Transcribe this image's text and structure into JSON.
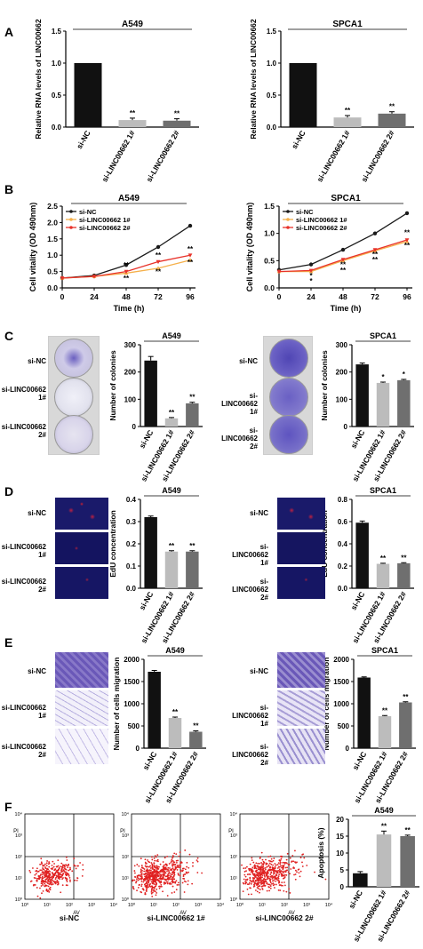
{
  "panel_letters": [
    "A",
    "B",
    "C",
    "D",
    "E",
    "F"
  ],
  "row_labels": [
    "si-NC",
    "si-LINC00662 1#",
    "si-LINC00662 2#"
  ],
  "flow_axis": {
    "y_label": "PI",
    "x_label": "AV",
    "tick_labels": [
      "10⁰",
      "10¹",
      "10²",
      "10³",
      "10⁴"
    ]
  },
  "colors": {
    "black_bar": "#111111",
    "light_bar": "#bcbcbc",
    "mid_bar": "#6f6f6f",
    "line_nc": "#1a1a1a",
    "line_1": "#f5b04a",
    "line_2": "#e8322a",
    "crystal_violet": "#5a50b8",
    "edu_red": "#cc2233",
    "edu_blue": "#2233aa",
    "flow_red": "#e02020"
  },
  "chart_data": [
    {
      "id": "A1",
      "type": "bar",
      "title": "A549",
      "ylabel": "Relative RNA levels of LINC00662",
      "categories": [
        "si-NC",
        "si-LINC00662 1#",
        "si-LINC00662 2#"
      ],
      "values": [
        1.0,
        0.11,
        0.1
      ],
      "errors": [
        0,
        0.03,
        0.03
      ],
      "sig": [
        "",
        "**",
        "**"
      ],
      "ylim": [
        0,
        1.5
      ],
      "yticks": [
        "0.0",
        "0.5",
        "1.0",
        "1.5"
      ]
    },
    {
      "id": "A2",
      "type": "bar",
      "title": "SPCA1",
      "ylabel": "Relative RNA levels of LINC00662",
      "categories": [
        "si-NC",
        "si-LINC00662 1#",
        "si-LINC00662 2#"
      ],
      "values": [
        1.0,
        0.15,
        0.21
      ],
      "errors": [
        0,
        0.03,
        0.03
      ],
      "sig": [
        "",
        "**",
        "**"
      ],
      "ylim": [
        0,
        1.5
      ],
      "yticks": [
        "0.0",
        "0.5",
        "1.0",
        "1.5"
      ]
    },
    {
      "id": "B1",
      "type": "line",
      "title": "A549",
      "xlabel": "Time (h)",
      "ylabel": "Cell vitality (OD 490nm)",
      "x": [
        0,
        24,
        48,
        72,
        96
      ],
      "xticks": [
        "0",
        "24",
        "48",
        "72",
        "96"
      ],
      "ylim": [
        0,
        2.5
      ],
      "yticks": [
        "0.0",
        "0.5",
        "1.0",
        "1.5",
        "2.0",
        "2.5"
      ],
      "xlim": [
        0,
        100
      ],
      "legend": "top-left",
      "series": [
        {
          "name": "si-NC",
          "values": [
            0.3,
            0.38,
            0.7,
            1.25,
            1.9
          ]
        },
        {
          "name": "si-LINC00662 1#",
          "values": [
            0.3,
            0.35,
            0.45,
            0.6,
            0.85
          ]
        },
        {
          "name": "si-LINC00662 2#",
          "values": [
            0.3,
            0.35,
            0.5,
            0.8,
            1.0
          ]
        }
      ],
      "sig_marks": [
        {
          "x": 48,
          "y": 0.62,
          "text": "**"
        },
        {
          "x": 48,
          "y": 0.22,
          "text": "**"
        },
        {
          "x": 72,
          "y": 0.92,
          "text": "**"
        },
        {
          "x": 72,
          "y": 0.42,
          "text": "**"
        },
        {
          "x": 96,
          "y": 1.12,
          "text": "**"
        },
        {
          "x": 96,
          "y": 0.7,
          "text": "**"
        }
      ]
    },
    {
      "id": "B2",
      "type": "line",
      "title": "SPCA1",
      "xlabel": "Time (h)",
      "ylabel": "Cell vitality (OD 490nm)",
      "x": [
        0,
        24,
        48,
        72,
        96
      ],
      "xticks": [
        "0",
        "24",
        "48",
        "72",
        "96"
      ],
      "ylim": [
        0,
        1.5
      ],
      "yticks": [
        "0.0",
        "0.5",
        "1.0",
        "1.5"
      ],
      "xlim": [
        0,
        100
      ],
      "legend": "top-left",
      "series": [
        {
          "name": "si-NC",
          "values": [
            0.33,
            0.43,
            0.7,
            1.0,
            1.37
          ]
        },
        {
          "name": "si-LINC00662 1#",
          "values": [
            0.3,
            0.3,
            0.5,
            0.68,
            0.85
          ]
        },
        {
          "name": "si-LINC00662 2#",
          "values": [
            0.3,
            0.32,
            0.52,
            0.7,
            0.88
          ]
        }
      ],
      "sig_marks": [
        {
          "x": 24,
          "y": 0.18,
          "text": "*"
        },
        {
          "x": 24,
          "y": 0.08,
          "text": "*"
        },
        {
          "x": 48,
          "y": 0.38,
          "text": "**"
        },
        {
          "x": 48,
          "y": 0.28,
          "text": "**"
        },
        {
          "x": 72,
          "y": 0.57,
          "text": "**"
        },
        {
          "x": 72,
          "y": 0.47,
          "text": "**"
        },
        {
          "x": 96,
          "y": 0.97,
          "text": "**"
        },
        {
          "x": 96,
          "y": 0.73,
          "text": "**"
        }
      ]
    },
    {
      "id": "C1",
      "type": "bar",
      "title": "A549",
      "ylabel": "Number of colonies",
      "categories": [
        "si-NC",
        "si-LINC00662 1#",
        "si-LINC00662 2#"
      ],
      "values": [
        242,
        30,
        85
      ],
      "errors": [
        15,
        3,
        4
      ],
      "sig": [
        "",
        "**",
        "**"
      ],
      "ylim": [
        0,
        300
      ],
      "yticks": [
        "0",
        "100",
        "200",
        "300"
      ]
    },
    {
      "id": "C2",
      "type": "bar",
      "title": "SPCA1",
      "ylabel": "Number of colonies",
      "categories": [
        "si-NC",
        "si-LINC00662 1#",
        "si-LINC00662 2#"
      ],
      "values": [
        228,
        160,
        170
      ],
      "errors": [
        5,
        3,
        3
      ],
      "sig": [
        "",
        "*",
        "*"
      ],
      "ylim": [
        0,
        300
      ],
      "yticks": [
        "0",
        "100",
        "200",
        "300"
      ]
    },
    {
      "id": "D1",
      "type": "bar",
      "title": "A549",
      "ylabel": "EdU concentration",
      "categories": [
        "si-NC",
        "si-LINC00662 1#",
        "si-LINC00662 2#"
      ],
      "values": [
        0.32,
        0.165,
        0.165
      ],
      "errors": [
        0.005,
        0.004,
        0.004
      ],
      "sig": [
        "",
        "**",
        "**"
      ],
      "ylim": [
        0,
        0.4
      ],
      "yticks": [
        "0.0",
        "0.1",
        "0.2",
        "0.3",
        "0.4"
      ]
    },
    {
      "id": "D2",
      "type": "bar",
      "title": "SPCA1",
      "ylabel": "EdU concentration",
      "categories": [
        "si-NC",
        "si-LINC00662 1#",
        "si-LINC00662 2#"
      ],
      "values": [
        0.59,
        0.22,
        0.225
      ],
      "errors": [
        0.015,
        0.005,
        0.005
      ],
      "sig": [
        "",
        "**",
        "**"
      ],
      "ylim": [
        0,
        0.8
      ],
      "yticks": [
        "0.0",
        "0.2",
        "0.4",
        "0.6",
        "0.8"
      ]
    },
    {
      "id": "E1",
      "type": "bar",
      "title": "A549",
      "ylabel": "Number of cells migration",
      "categories": [
        "si-NC",
        "si-LINC00662 1#",
        "si-LINC00662 2#"
      ],
      "values": [
        1720,
        680,
        370
      ],
      "errors": [
        30,
        20,
        20
      ],
      "sig": [
        "",
        "**",
        "**"
      ],
      "ylim": [
        0,
        2000
      ],
      "yticks": [
        "0",
        "500",
        "1000",
        "1500",
        "2000"
      ]
    },
    {
      "id": "E2",
      "type": "bar",
      "title": "SPCA1",
      "ylabel": "Number of cells migration",
      "categories": [
        "si-NC",
        "si-LINC00662 1#",
        "si-LINC00662 2#"
      ],
      "values": [
        1590,
        720,
        1030
      ],
      "errors": [
        15,
        15,
        15
      ],
      "sig": [
        "",
        "**",
        "**"
      ],
      "ylim": [
        0,
        2000
      ],
      "yticks": [
        "0",
        "500",
        "1000",
        "1500",
        "2000"
      ]
    },
    {
      "id": "F1",
      "type": "bar",
      "title": "A549",
      "ylabel": "Apoptosis (%)",
      "categories": [
        "si-NC",
        "si-LINC00662 1#",
        "si-LINC00662 2#"
      ],
      "values": [
        4.0,
        15.5,
        15.0
      ],
      "errors": [
        0.5,
        1.0,
        0.3
      ],
      "sig": [
        "",
        "**",
        "**"
      ],
      "ylim": [
        0,
        20
      ],
      "yticks": [
        "0",
        "5",
        "10",
        "15",
        "20"
      ]
    }
  ]
}
